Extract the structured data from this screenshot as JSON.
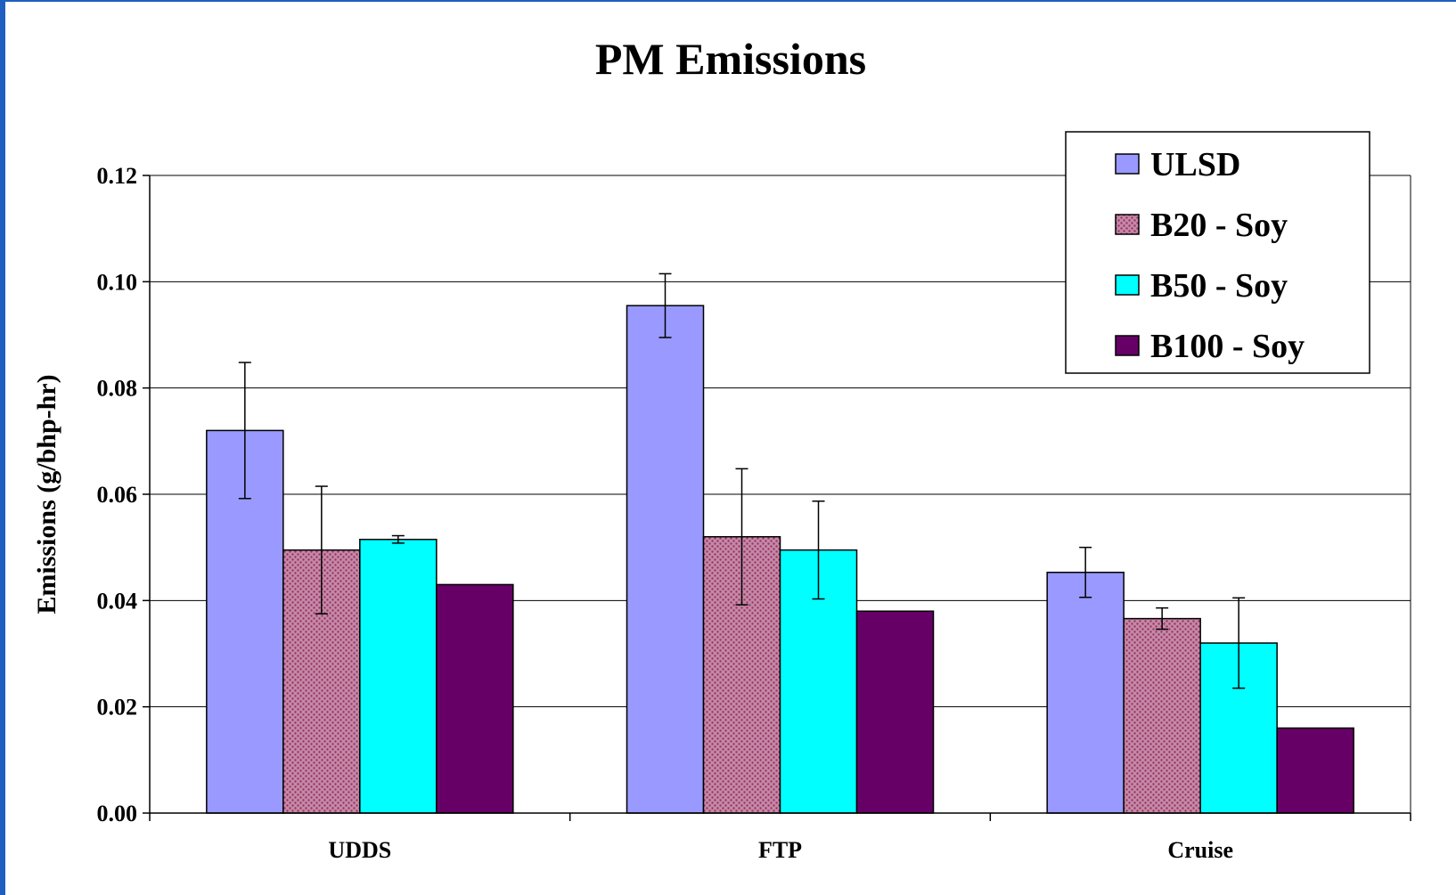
{
  "chart_data": {
    "type": "bar",
    "title": "PM Emissions",
    "ylabel": "Emissions (g/bhp-hr)",
    "xlabel": "",
    "categories": [
      "UDDS",
      "FTP",
      "Cruise"
    ],
    "ylim": [
      0,
      0.12
    ],
    "yticks": [
      "0.00",
      "0.02",
      "0.04",
      "0.06",
      "0.08",
      "0.10",
      "0.12"
    ],
    "grid": true,
    "legend_position": "top-right",
    "series": [
      {
        "name": "ULSD",
        "color": "#9999ff",
        "pattern": "solid",
        "values": [
          0.072,
          0.0955,
          0.0453
        ],
        "errors": [
          0.0128,
          0.006,
          0.0047
        ]
      },
      {
        "name": "B20 - Soy",
        "color": "#993366",
        "pattern": "dotted",
        "values": [
          0.0495,
          0.052,
          0.0366
        ],
        "errors": [
          0.012,
          0.0128,
          0.002
        ]
      },
      {
        "name": "B50 - Soy",
        "color": "#00ffff",
        "pattern": "solid",
        "values": [
          0.0515,
          0.0495,
          0.032
        ],
        "errors": [
          0.0007,
          0.0092,
          0.0085
        ]
      },
      {
        "name": "B100 - Soy",
        "color": "#660066",
        "pattern": "solid",
        "values": [
          0.043,
          0.038,
          0.016
        ],
        "errors": [
          0,
          0,
          0
        ]
      }
    ]
  }
}
